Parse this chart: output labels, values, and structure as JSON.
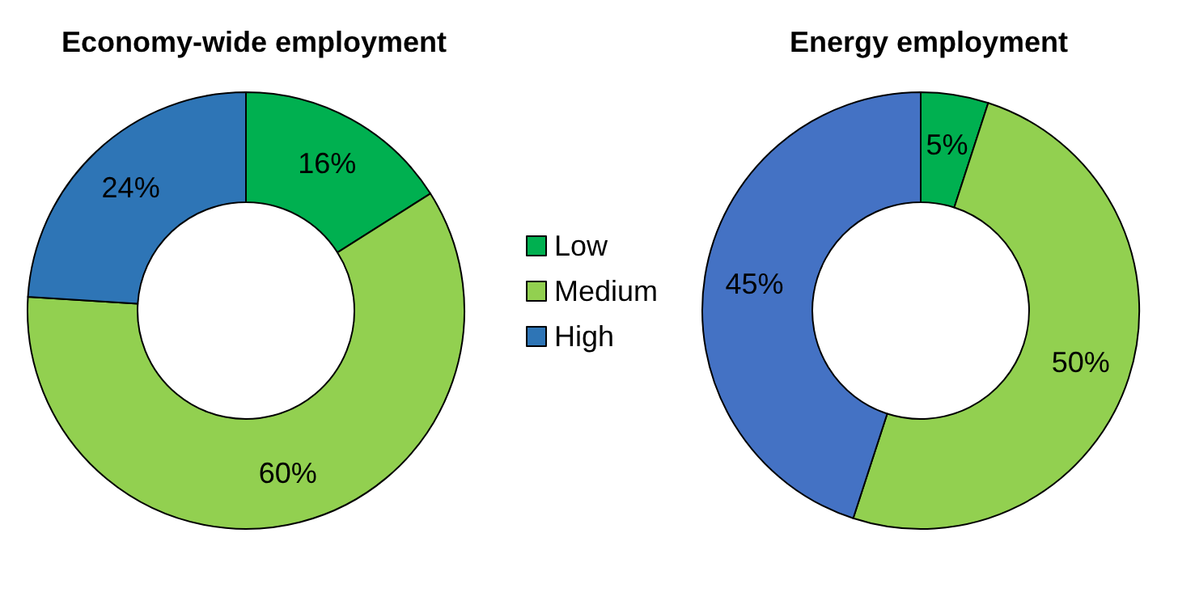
{
  "chart_data": [
    {
      "type": "donut",
      "title": "Economy-wide employment",
      "categories": [
        "Low",
        "Medium",
        "High"
      ],
      "values": [
        16,
        60,
        24
      ],
      "colors": [
        "#00b050",
        "#92d050",
        "#2e75b6"
      ],
      "value_labels": [
        "16%",
        "60%",
        "24%"
      ],
      "legend": "right"
    },
    {
      "type": "donut",
      "title": "Energy employment",
      "categories": [
        null,
        null,
        null
      ],
      "values": [
        5,
        50,
        45
      ],
      "colors": [
        "#00b050",
        "#92d050",
        "#4472c4"
      ],
      "value_labels": [
        "5%",
        "50%",
        "45%"
      ],
      "legend": false
    }
  ]
}
